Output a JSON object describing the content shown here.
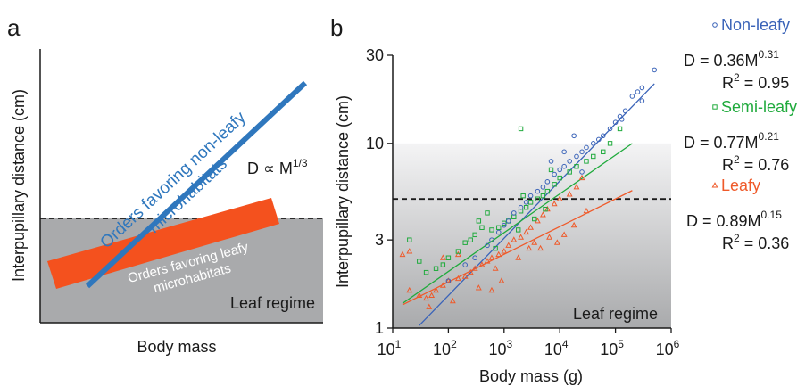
{
  "colors": {
    "non_leafy": "#3a63b8",
    "semi_leafy": "#1faa3c",
    "leafy": "#ef5a2a",
    "schematic_blue": "#2f77bd",
    "schematic_orange": "#f4511e",
    "leaf_regime_gray": "#a9aaac",
    "gradient_top": "#f4f4f5"
  },
  "panel_a": {
    "label": "a",
    "xlabel": "Body mass",
    "ylabel": "Interpupillary distance (cm)",
    "non_leafy_line_label_1": "Orders favoring non-leafy",
    "non_leafy_line_label_2": "microhabitats",
    "leafy_band_label_1": "Orders favoring leafy",
    "leafy_band_label_2": "microhabitats",
    "scaling_base": "D ∝ M",
    "scaling_exp": "1/3",
    "regime_label": "Leaf regime"
  },
  "chart_data": {
    "type": "scatter",
    "panel_label": "b",
    "xlabel": "Body mass (g)",
    "ylabel": "Interpupillary distance (cm)",
    "x_scale": "log",
    "y_scale": "log",
    "xlim": [
      10,
      1000000
    ],
    "ylim": [
      1,
      30
    ],
    "x_ticks": [
      {
        "base": "10",
        "exp": "1",
        "value": 10
      },
      {
        "base": "10",
        "exp": "2",
        "value": 100
      },
      {
        "base": "10",
        "exp": "3",
        "value": 1000
      },
      {
        "base": "10",
        "exp": "4",
        "value": 10000
      },
      {
        "base": "10",
        "exp": "5",
        "value": 100000
      },
      {
        "base": "10",
        "exp": "6",
        "value": 1000000
      }
    ],
    "y_ticks": [
      {
        "label": "1",
        "value": 1
      },
      {
        "label": "3",
        "value": 3
      },
      {
        "label": "10",
        "value": 10
      },
      {
        "label": "30",
        "value": 30
      }
    ],
    "leaf_regime": {
      "label": "Leaf regime",
      "threshold_cm": 5,
      "gradient_top_cm": 10
    },
    "series": [
      {
        "name": "Non-leafy",
        "marker": "circle",
        "fit": {
          "a": 0.36,
          "b": 0.31,
          "x_range": [
            30,
            500000
          ]
        },
        "equation_base": "D = 0.36M",
        "equation_exp": "0.31",
        "r2": "= 0.95",
        "points": [
          [
            500000,
            25
          ],
          [
            300000,
            20
          ],
          [
            250000,
            19
          ],
          [
            200000,
            18
          ],
          [
            300000,
            17
          ],
          [
            150000,
            15
          ],
          [
            120000,
            14
          ],
          [
            100000,
            13
          ],
          [
            130000,
            13.5
          ],
          [
            80000,
            12
          ],
          [
            60000,
            11
          ],
          [
            50000,
            10.5
          ],
          [
            40000,
            10
          ],
          [
            30000,
            9.5
          ],
          [
            25000,
            9
          ],
          [
            20000,
            8.5
          ],
          [
            15000,
            8
          ],
          [
            12000,
            7.5
          ],
          [
            10000,
            7.2
          ],
          [
            8000,
            6.8
          ],
          [
            6000,
            6.2
          ],
          [
            5000,
            5.8
          ],
          [
            4000,
            5.5
          ],
          [
            3000,
            5.2
          ],
          [
            2500,
            4.8
          ],
          [
            2000,
            4.5
          ],
          [
            1500,
            4.2
          ],
          [
            1200,
            3.8
          ],
          [
            1000,
            3.6
          ],
          [
            800,
            3.3
          ],
          [
            600,
            3.0
          ],
          [
            500,
            2.8
          ],
          [
            300,
            2.4
          ],
          [
            200,
            2.2
          ],
          [
            100,
            1.8
          ],
          [
            12000,
            9
          ],
          [
            18000,
            11
          ],
          [
            7000,
            8
          ],
          [
            25000,
            7
          ]
        ]
      },
      {
        "name": "Semi-leafy",
        "marker": "square",
        "fit": {
          "a": 0.77,
          "b": 0.21,
          "x_range": [
            15,
            200000
          ]
        },
        "equation_base": "D = 0.77M",
        "equation_exp": "0.21",
        "r2": "= 0.76",
        "points": [
          [
            2000,
            12
          ],
          [
            120000,
            12
          ],
          [
            80000,
            10
          ],
          [
            60000,
            9
          ],
          [
            40000,
            8.5
          ],
          [
            30000,
            8
          ],
          [
            20000,
            7.5
          ],
          [
            15000,
            7
          ],
          [
            10000,
            6.5
          ],
          [
            8000,
            6
          ],
          [
            6000,
            5.5
          ],
          [
            5000,
            5.2
          ],
          [
            4000,
            5
          ],
          [
            3000,
            4.8
          ],
          [
            2500,
            4.5
          ],
          [
            2000,
            4.3
          ],
          [
            1500,
            4
          ],
          [
            1200,
            3.8
          ],
          [
            1000,
            3.7
          ],
          [
            800,
            3.5
          ],
          [
            600,
            3.4
          ],
          [
            500,
            4.2
          ],
          [
            400,
            3.5
          ],
          [
            300,
            3.2
          ],
          [
            250,
            3.0
          ],
          [
            200,
            2.9
          ],
          [
            150,
            2.6
          ],
          [
            100,
            2.4
          ],
          [
            80,
            2.2
          ],
          [
            60,
            2.1
          ],
          [
            40,
            2.0
          ],
          [
            30,
            2.3
          ],
          [
            20,
            3.0
          ],
          [
            2200,
            5.2
          ],
          [
            3500,
            3.9
          ],
          [
            5500,
            4.4
          ],
          [
            7000,
            7.2
          ],
          [
            1800,
            3.4
          ],
          [
            700,
            2.7
          ],
          [
            350,
            3.8
          ]
        ]
      },
      {
        "name": "Leafy",
        "marker": "triangle",
        "fit": {
          "a": 0.89,
          "b": 0.15,
          "x_range": [
            15,
            200000
          ]
        },
        "equation_base": "D = 0.89M",
        "equation_exp": "0.15",
        "r2": "= 0.36",
        "points": [
          [
            25000,
            6.5
          ],
          [
            20000,
            5.8
          ],
          [
            15000,
            5.3
          ],
          [
            10000,
            5
          ],
          [
            8000,
            4.7
          ],
          [
            6000,
            4.4
          ],
          [
            5000,
            4.1
          ],
          [
            4000,
            3.8
          ],
          [
            3000,
            3.5
          ],
          [
            2500,
            3.3
          ],
          [
            2000,
            3.1
          ],
          [
            1500,
            3.0
          ],
          [
            1200,
            2.8
          ],
          [
            1000,
            2.6
          ],
          [
            800,
            2.5
          ],
          [
            600,
            2.4
          ],
          [
            500,
            2.3
          ],
          [
            400,
            2.2
          ],
          [
            300,
            2.1
          ],
          [
            250,
            2.0
          ],
          [
            200,
            1.9
          ],
          [
            150,
            1.85
          ],
          [
            100,
            1.8
          ],
          [
            80,
            1.7
          ],
          [
            60,
            1.6
          ],
          [
            50,
            1.5
          ],
          [
            40,
            1.45
          ],
          [
            30,
            1.5
          ],
          [
            20,
            1.6
          ],
          [
            15,
            2.5
          ],
          [
            20,
            2.6
          ],
          [
            80,
            2.4
          ],
          [
            150,
            2.5
          ],
          [
            700,
            2.1
          ],
          [
            900,
            1.8
          ],
          [
            3500,
            2.9
          ],
          [
            6500,
            3.1
          ],
          [
            12000,
            3.2
          ],
          [
            9000,
            2.9
          ],
          [
            1800,
            2.4
          ],
          [
            2800,
            2.7
          ],
          [
            350,
            1.65
          ],
          [
            120,
            1.4
          ],
          [
            30000,
            4.3
          ],
          [
            18000,
            3.6
          ],
          [
            45,
            1.3
          ],
          [
            600,
            1.6
          ],
          [
            4500,
            2.7
          ]
        ]
      }
    ]
  }
}
